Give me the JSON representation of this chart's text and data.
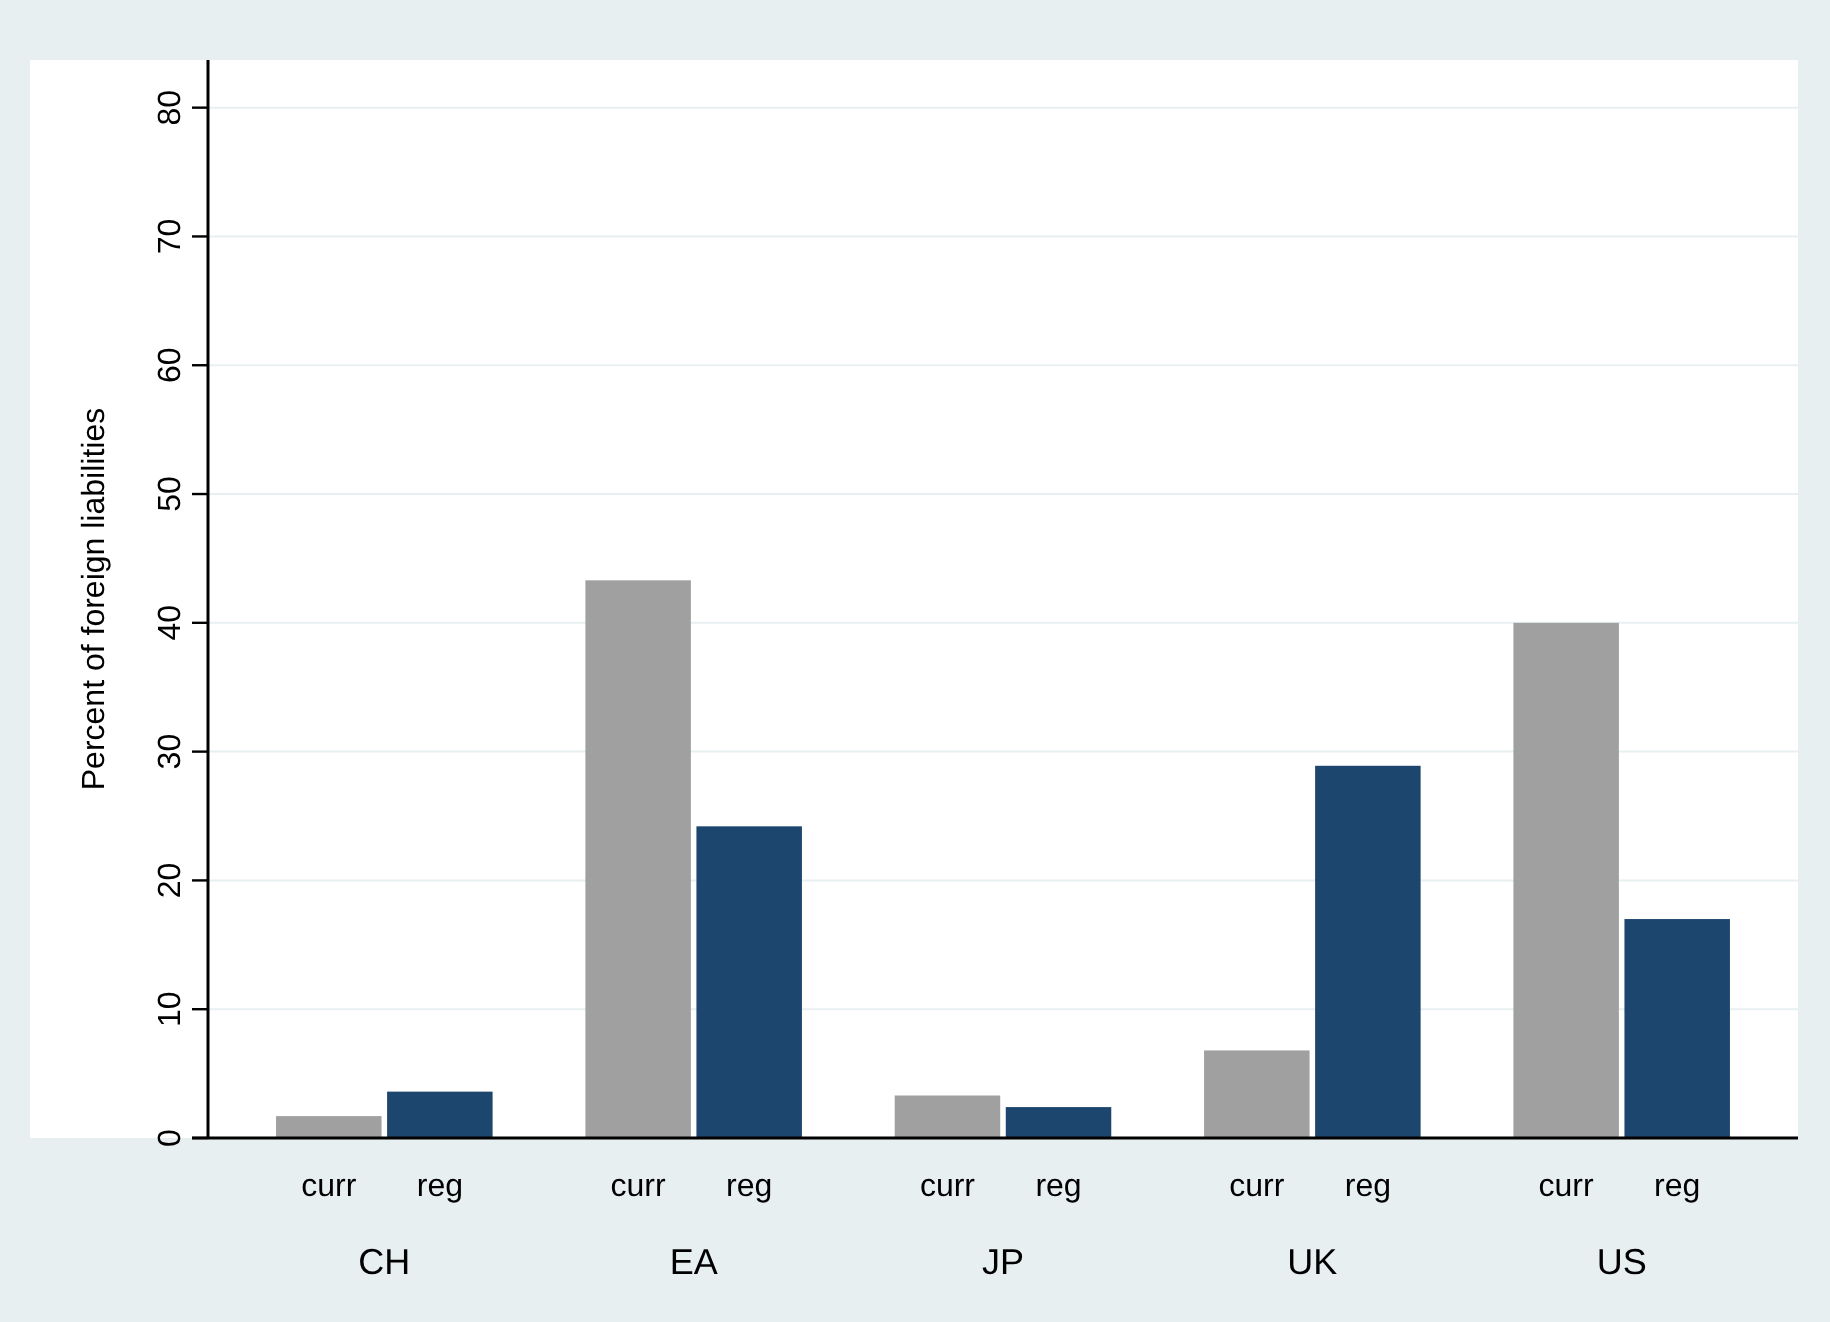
{
  "chart_data": {
    "type": "bar",
    "ylabel": "Percent of foreign liabilities",
    "categories": [
      "CH",
      "EA",
      "JP",
      "UK",
      "US"
    ],
    "series": [
      {
        "name": "curr",
        "color": "#a0a0a0",
        "values": [
          1.7,
          43.3,
          3.3,
          6.8,
          40.0
        ]
      },
      {
        "name": "reg",
        "color": "#1c466e",
        "values": [
          3.6,
          24.2,
          2.4,
          28.9,
          17.0
        ]
      }
    ],
    "ylim": [
      0,
      83.7
    ],
    "yticks": [
      0,
      10,
      20,
      30,
      40,
      50,
      60,
      70,
      80
    ],
    "grid": "y"
  }
}
